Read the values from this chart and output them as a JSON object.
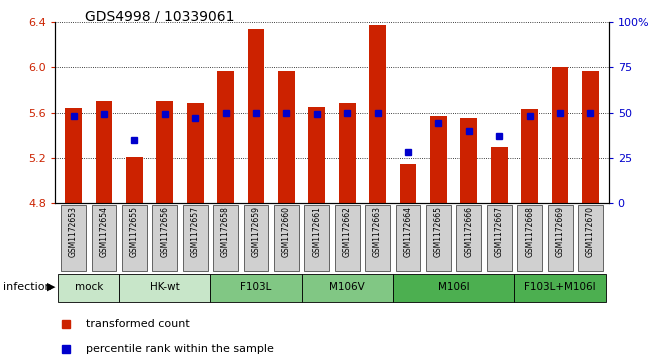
{
  "title": "GDS4998 / 10339061",
  "samples": [
    "GSM1172653",
    "GSM1172654",
    "GSM1172655",
    "GSM1172656",
    "GSM1172657",
    "GSM1172658",
    "GSM1172659",
    "GSM1172660",
    "GSM1172661",
    "GSM1172662",
    "GSM1172663",
    "GSM1172664",
    "GSM1172665",
    "GSM1172666",
    "GSM1172667",
    "GSM1172668",
    "GSM1172669",
    "GSM1172670"
  ],
  "bar_values": [
    5.64,
    5.7,
    5.21,
    5.7,
    5.68,
    5.97,
    6.34,
    5.97,
    5.65,
    5.68,
    6.37,
    5.15,
    5.57,
    5.55,
    5.3,
    5.63,
    6.0,
    5.97
  ],
  "percentile_values": [
    48,
    49,
    35,
    49,
    47,
    50,
    50,
    50,
    49,
    50,
    50,
    28,
    44,
    40,
    37,
    48,
    50,
    50
  ],
  "groups": [
    {
      "label": "mock",
      "start": 0,
      "end": 2,
      "color": "#c8e6c9"
    },
    {
      "label": "HK-wt",
      "start": 2,
      "end": 5,
      "color": "#c8e6c9"
    },
    {
      "label": "F103L",
      "start": 5,
      "end": 8,
      "color": "#81c784"
    },
    {
      "label": "M106V",
      "start": 8,
      "end": 11,
      "color": "#81c784"
    },
    {
      "label": "M106I",
      "start": 11,
      "end": 15,
      "color": "#4caf50"
    },
    {
      "label": "F103L+M106I",
      "start": 15,
      "end": 18,
      "color": "#4caf50"
    }
  ],
  "ylim": [
    4.8,
    6.4
  ],
  "y2lim": [
    0,
    100
  ],
  "yticks": [
    4.8,
    5.2,
    5.6,
    6.0,
    6.4
  ],
  "y2ticks": [
    0,
    25,
    50,
    75,
    100
  ],
  "y2ticklabels": [
    "0",
    "25",
    "50",
    "75",
    "100%"
  ],
  "bar_color": "#cc2200",
  "dot_color": "#0000cc",
  "bar_width": 0.55,
  "bg_color": "#ffffff",
  "sample_box_color": "#d0d0d0",
  "infection_label": "infection",
  "legend_bar_label": "transformed count",
  "legend_dot_label": "percentile rank within the sample"
}
